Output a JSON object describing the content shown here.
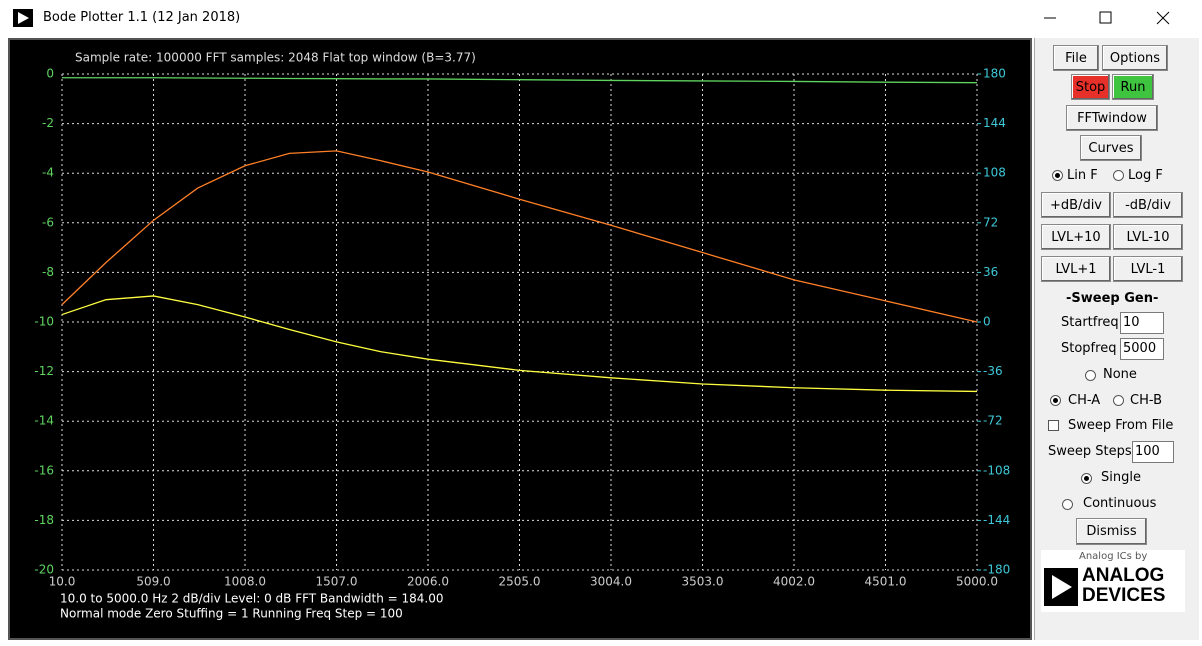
{
  "window": {
    "title": "Bode Plotter 1.1 (12 Jan 2018)"
  },
  "chart_data": {
    "type": "line",
    "header": "Sample rate: 100000   FFT samples: 2048   Flat top window (B=3.77)",
    "footer": [
      "10.0 to 5000.0 Hz  2 dB/div  Level: 0 dB   FFT Bandwidth = 184.00",
      "Normal mode Zero Stuffing = 1  Running   Freq Step = 100"
    ],
    "x": [
      10,
      250,
      509,
      750,
      1008,
      1250,
      1507,
      1750,
      2006,
      2505,
      3004,
      3503,
      4002,
      4501,
      5000
    ],
    "series": [
      {
        "color": "#5fd35f",
        "values": [
          -0.15,
          -0.15,
          -0.15,
          -0.16,
          -0.17,
          -0.18,
          -0.19,
          -0.2,
          -0.2,
          -0.23,
          -0.26,
          -0.28,
          -0.3,
          -0.33,
          -0.35
        ]
      },
      {
        "color": "#ff7f27",
        "values": [
          -9.3,
          -7.6,
          -5.9,
          -4.6,
          -3.7,
          -3.2,
          -3.1,
          -3.5,
          -3.95,
          -5.05,
          -6.1,
          -7.2,
          -8.3,
          -9.15,
          -10.0
        ]
      },
      {
        "color": "#ffff40",
        "values": [
          -9.7,
          -9.1,
          -8.95,
          -9.3,
          -9.8,
          -10.3,
          -10.8,
          -11.2,
          -11.5,
          -11.95,
          -12.25,
          -12.5,
          -12.65,
          -12.75,
          -12.8
        ]
      }
    ],
    "xlim": [
      10,
      5000
    ],
    "xticks": [
      {
        "value": 10,
        "label": "10.0"
      },
      {
        "value": 509,
        "label": "509.0"
      },
      {
        "value": 1008,
        "label": "1008.0"
      },
      {
        "value": 1507,
        "label": "1507.0"
      },
      {
        "value": 2006,
        "label": "2006.0"
      },
      {
        "value": 2505,
        "label": "2505.0"
      },
      {
        "value": 3004,
        "label": "3004.0"
      },
      {
        "value": 3503,
        "label": "3503.0"
      },
      {
        "value": 4002,
        "label": "4002.0"
      },
      {
        "value": 4501,
        "label": "4501.0"
      },
      {
        "value": 5000,
        "label": "5000.0"
      }
    ],
    "ylim": [
      -20,
      0
    ],
    "yticks": [
      0,
      -2,
      -4,
      -6,
      -8,
      -10,
      -12,
      -14,
      -16,
      -18,
      -20
    ],
    "y2lim": [
      -180,
      180
    ],
    "y2ticks": [
      180,
      144,
      108,
      72,
      36,
      0,
      -36,
      -72,
      -108,
      -144,
      -180
    ],
    "grid": true
  },
  "sidebar": {
    "file": "File",
    "options": "Options",
    "stop": "Stop",
    "run": "Run",
    "fftwindow": "FFTwindow",
    "curves": "Curves",
    "lin_f": "Lin F",
    "log_f": "Log F",
    "db_up": "+dB/div",
    "db_down": "-dB/div",
    "lvl_up10": "LVL+10",
    "lvl_down10": "LVL-10",
    "lvl_up1": "LVL+1",
    "lvl_down1": "LVL-1",
    "sweep_gen": "-Sweep Gen-",
    "startfreq_label": "Startfreq",
    "startfreq": "10",
    "stopfreq_label": "Stopfreq",
    "stopfreq": "5000",
    "none": "None",
    "ch_a": "CH-A",
    "ch_b": "CH-B",
    "sweep_from_file": "Sweep From File",
    "sweep_steps_label": "Sweep Steps",
    "sweep_steps": "100",
    "single": "Single",
    "continuous": "Continuous",
    "dismiss": "Dismiss",
    "logo_top": "Analog ICs by",
    "logo_line1": "ANALOG",
    "logo_line2": "DEVICES"
  }
}
